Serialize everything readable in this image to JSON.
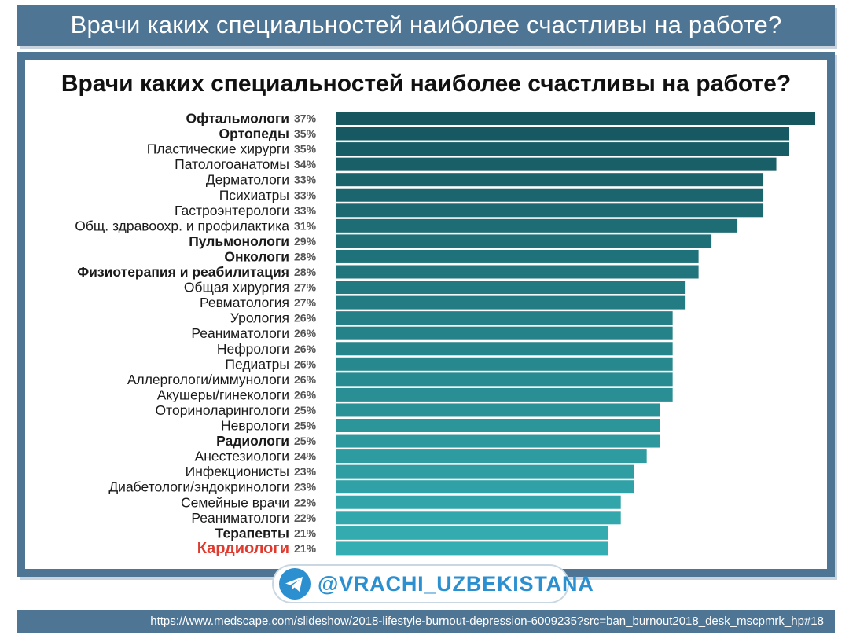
{
  "banner": {
    "title": "Врачи каких специальностей наиболее счастливы на работе?"
  },
  "colors": {
    "frame": "#4f7595",
    "bar_dark": "#16565f",
    "bar_light": "#34aeb2",
    "highlight_label": "#e03a2e",
    "telegram": "#2b8fd0"
  },
  "chart_data": {
    "type": "bar",
    "orientation": "horizontal",
    "title": "Врачи каких специальностей наиболее счастливы на работе?",
    "xlim": [
      0,
      37
    ],
    "grid": false,
    "categories": [
      "Офтальмологи",
      "Ортопеды",
      "Пластические хирурги",
      "Патологоанатомы",
      "Дерматологи",
      "Психиатры",
      "Гастроэнтерологи",
      "Общ. здравоохр. и профилактика",
      "Пульмонологи",
      "Онкологи",
      "Физиотерапия и реабилитация",
      "Общая хирургия",
      "Ревматология",
      "Урология",
      "Реаниматологи",
      "Нефрологи",
      "Педиатры",
      "Аллергологи/иммунологи",
      "Акушеры/гинекологи",
      "Оториноларингологи",
      "Неврологи",
      "Радиологи",
      "Анестезиологи",
      "Инфекционисты",
      "Диабетологи/эндокринологи",
      "Семейные врачи",
      "Реаниматологи",
      "Терапевты",
      "Кардиологи"
    ],
    "values": [
      37,
      35,
      35,
      34,
      33,
      33,
      33,
      31,
      29,
      28,
      28,
      27,
      27,
      26,
      26,
      26,
      26,
      26,
      26,
      25,
      25,
      25,
      24,
      23,
      23,
      22,
      22,
      21,
      21
    ],
    "value_labels": [
      "37%",
      "35%",
      "35%",
      "34%",
      "33%",
      "33%",
      "33%",
      "31%",
      "29%",
      "28%",
      "28%",
      "27%",
      "27%",
      "26%",
      "26%",
      "26%",
      "26%",
      "26%",
      "26%",
      "25%",
      "25%",
      "25%",
      "24%",
      "23%",
      "23%",
      "22%",
      "22%",
      "21%",
      "21%"
    ],
    "bold_categories": [
      "Офтальмологи",
      "Ортопеды",
      "Пульмонологи",
      "Онкологи",
      "Физиотерапия и реабилитация",
      "Радиологи",
      "Терапевты",
      "Кардиологи"
    ],
    "highlighted_category": "Кардиологи"
  },
  "telegram": {
    "handle": "@VRACHI_UZBEKISTANA",
    "icon": "telegram-icon"
  },
  "footer": {
    "source_url": "https://www.medscape.com/slideshow/2018-lifestyle-burnout-depression-6009235?src=ban_burnout2018_desk_mscpmrk_hp#18"
  }
}
